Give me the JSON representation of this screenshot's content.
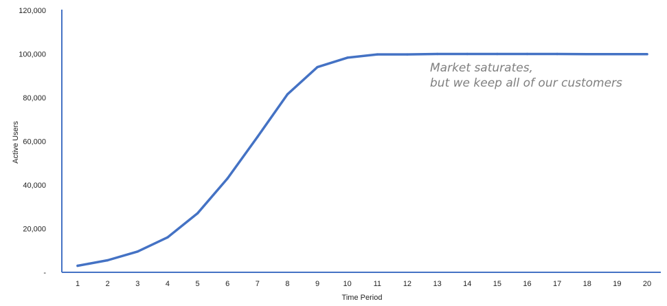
{
  "chart_data": {
    "type": "line",
    "x": [
      1,
      2,
      3,
      4,
      5,
      6,
      7,
      8,
      9,
      10,
      11,
      12,
      13,
      14,
      15,
      16,
      17,
      18,
      19,
      20
    ],
    "series": [
      {
        "values": [
          3000,
          5500,
          9500,
          16000,
          27000,
          43000,
          62000,
          81500,
          94000,
          98300,
          99800,
          99800,
          100000,
          100000,
          100000,
          100000,
          100000,
          99900,
          99900,
          99900
        ]
      }
    ],
    "xlabel": "Time Period",
    "ylabel": "Active Users",
    "ylim": [
      0,
      120000
    ],
    "y_ticks": [
      0,
      20000,
      40000,
      60000,
      80000,
      100000,
      120000
    ],
    "y_tick_labels": [
      "-",
      "20,000",
      "40,000",
      "60,000",
      "80,000",
      "100,000",
      "120,000"
    ],
    "x_tick_labels": [
      "1",
      "2",
      "3",
      "4",
      "5",
      "6",
      "7",
      "8",
      "9",
      "10",
      "11",
      "12",
      "13",
      "14",
      "15",
      "16",
      "17",
      "18",
      "19",
      "20"
    ],
    "annotation": {
      "line1": "Market saturates,",
      "line2": "but we keep all of our customers"
    },
    "line_color": "#4472c4",
    "axis_color": "#4472c4",
    "grid": false,
    "legend": "none"
  }
}
